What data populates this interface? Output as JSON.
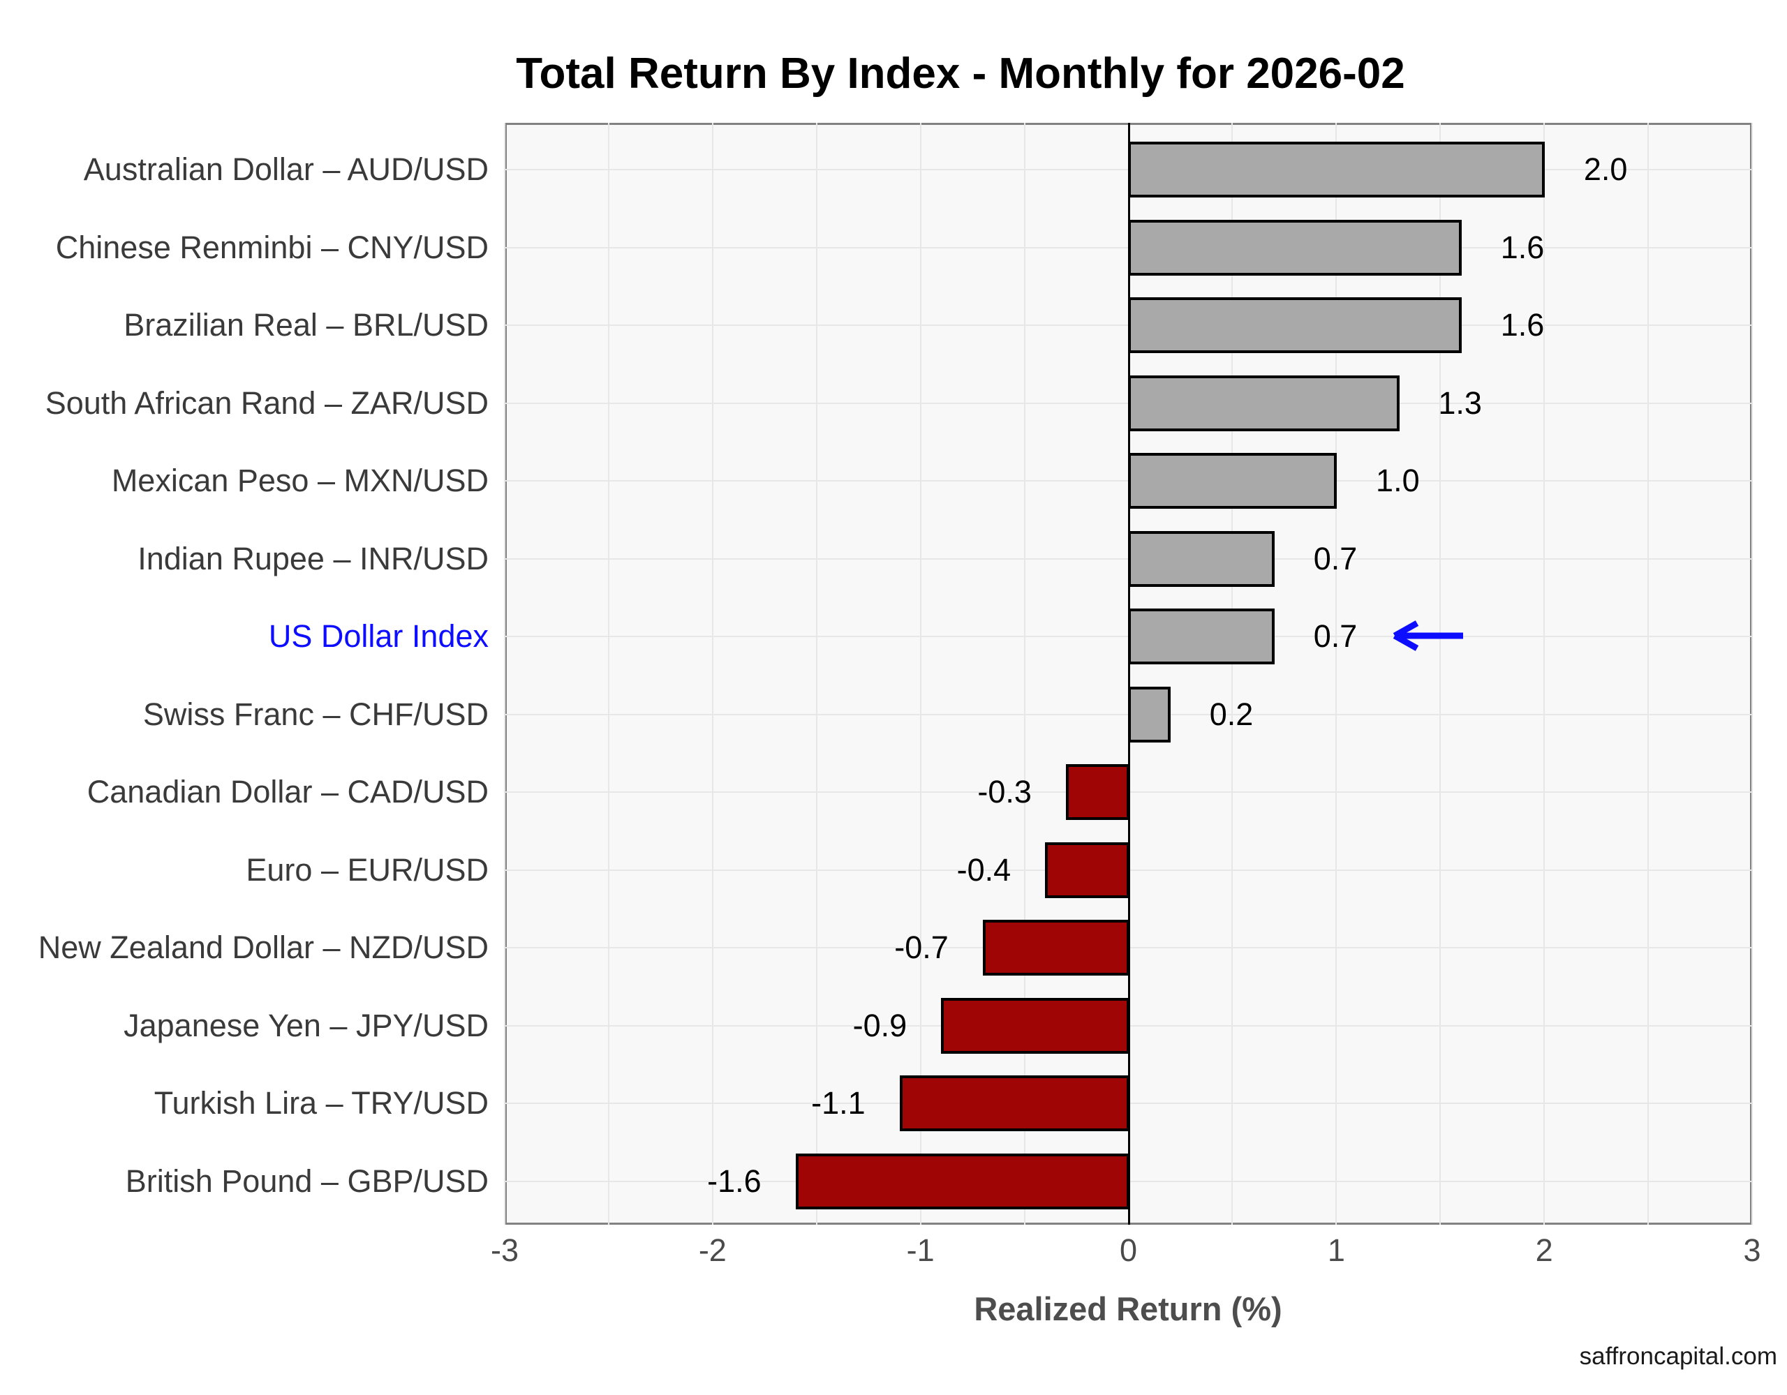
{
  "title": "Total Return By Index - Monthly for 2026-02",
  "watermark": "saffroncapital.com",
  "chart_data": {
    "type": "bar",
    "orientation": "horizontal",
    "title": "Total Return By Index - Monthly for 2026-02",
    "xlabel": "Realized Return (%)",
    "xlim": [
      -3,
      3
    ],
    "x_ticks": [
      -3,
      -2,
      -1,
      0,
      1,
      2,
      3
    ],
    "grid": true,
    "categories": [
      "Australian Dollar – AUD/USD",
      "Chinese Renminbi – CNY/USD",
      "Brazilian Real – BRL/USD",
      "South African Rand – ZAR/USD",
      "Mexican Peso – MXN/USD",
      "Indian Rupee – INR/USD",
      "US Dollar Index",
      "Swiss Franc – CHF/USD",
      "Canadian Dollar – CAD/USD",
      "Euro – EUR/USD",
      "New Zealand Dollar – NZD/USD",
      "Japanese Yen – JPY/USD",
      "Turkish Lira – TRY/USD",
      "British Pound – GBP/USD"
    ],
    "values": [
      2.0,
      1.6,
      1.6,
      1.3,
      1.0,
      0.7,
      0.7,
      0.2,
      -0.3,
      -0.4,
      -0.7,
      -0.9,
      -1.1,
      -1.6
    ],
    "value_labels": [
      "2.0",
      "1.6",
      "1.6",
      "1.3",
      "1.0",
      "0.7",
      "0.7",
      "0.2",
      "-0.3",
      "-0.4",
      "-0.7",
      "-0.9",
      "-1.1",
      "-1.6"
    ],
    "highlight_category": "US Dollar Index",
    "annotation": "blue left-pointing arrow beside US Dollar Index value",
    "legend": "none",
    "colors": {
      "positive_bar": "#a9a9a9",
      "negative_bar": "#a00505",
      "bar_border": "#000000",
      "highlight_label": "#0d0dff",
      "arrow": "#0d0dff",
      "panel_background": "#f8f8f8",
      "gridline": "#e7e7e7"
    }
  }
}
